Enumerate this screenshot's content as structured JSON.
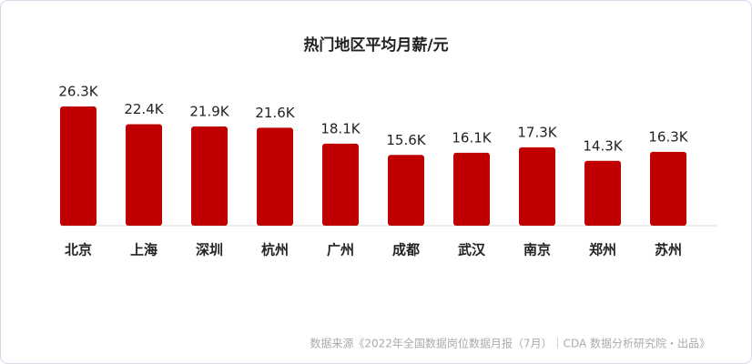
{
  "chart_data": {
    "type": "bar",
    "title": "热门地区平均月薪/元",
    "categories": [
      "北京",
      "上海",
      "深圳",
      "杭州",
      "广州",
      "成都",
      "武汉",
      "南京",
      "郑州",
      "苏州"
    ],
    "values": [
      26.3,
      22.4,
      21.9,
      21.6,
      18.1,
      15.6,
      16.1,
      17.3,
      14.3,
      16.3
    ],
    "value_labels": [
      "26.3K",
      "22.4K",
      "21.9K",
      "21.6K",
      "18.1K",
      "15.6K",
      "16.1K",
      "17.3K",
      "14.3K",
      "16.3K"
    ],
    "color": "#c00000",
    "source": "数据来源《2022年全国数据岗位数据月报（7月）｜CDA 数据分析研究院・出品》"
  }
}
